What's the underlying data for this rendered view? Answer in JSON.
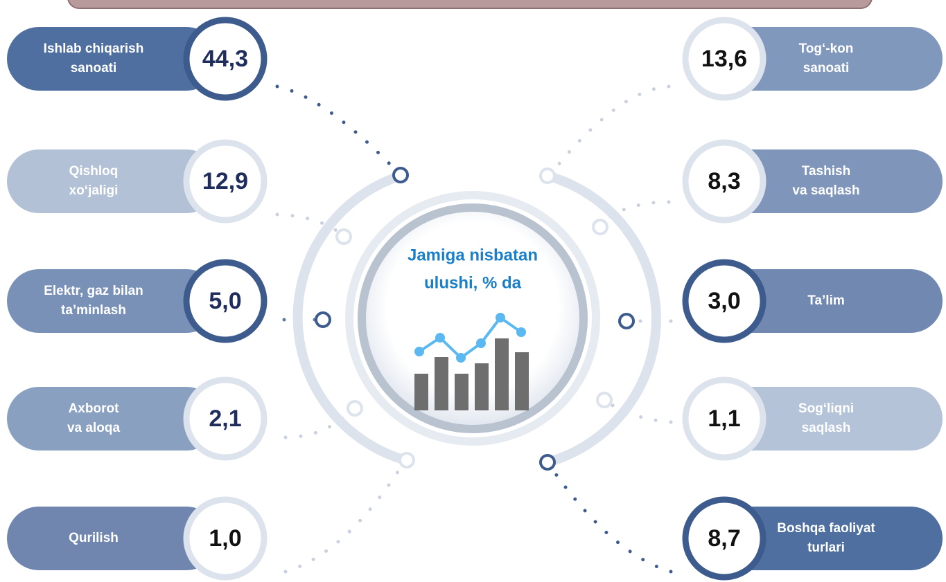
{
  "center": {
    "title": [
      "Jamiga nisbatan",
      "ulushi, % da"
    ]
  },
  "left": [
    {
      "label": [
        "Ishlab chiqarish",
        "sanoati"
      ],
      "value": "44,3"
    },
    {
      "label": [
        "Qishloq",
        "xo‘jaligi"
      ],
      "value": "12,9"
    },
    {
      "label": [
        "Elektr, gaz bilan",
        "ta’minlash"
      ],
      "value": "5,0"
    },
    {
      "label": [
        "Axborot",
        "va aloqa"
      ],
      "value": "2,1"
    },
    {
      "label": [
        "Qurilish"
      ],
      "value": "1,0"
    }
  ],
  "right": [
    {
      "label": [
        "Tog‘-kon",
        "sanoati"
      ],
      "value": "13,6"
    },
    {
      "label": [
        "Tashish",
        "va saqlash"
      ],
      "value": "8,3"
    },
    {
      "label": [
        "Ta’lim"
      ],
      "value": "3,0"
    },
    {
      "label": [
        "Sog‘liqni",
        "saqlash"
      ],
      "value": "1,1"
    },
    {
      "label": [
        "Boshqa faoliyat",
        "turlari"
      ],
      "value": "8,7"
    }
  ]
}
